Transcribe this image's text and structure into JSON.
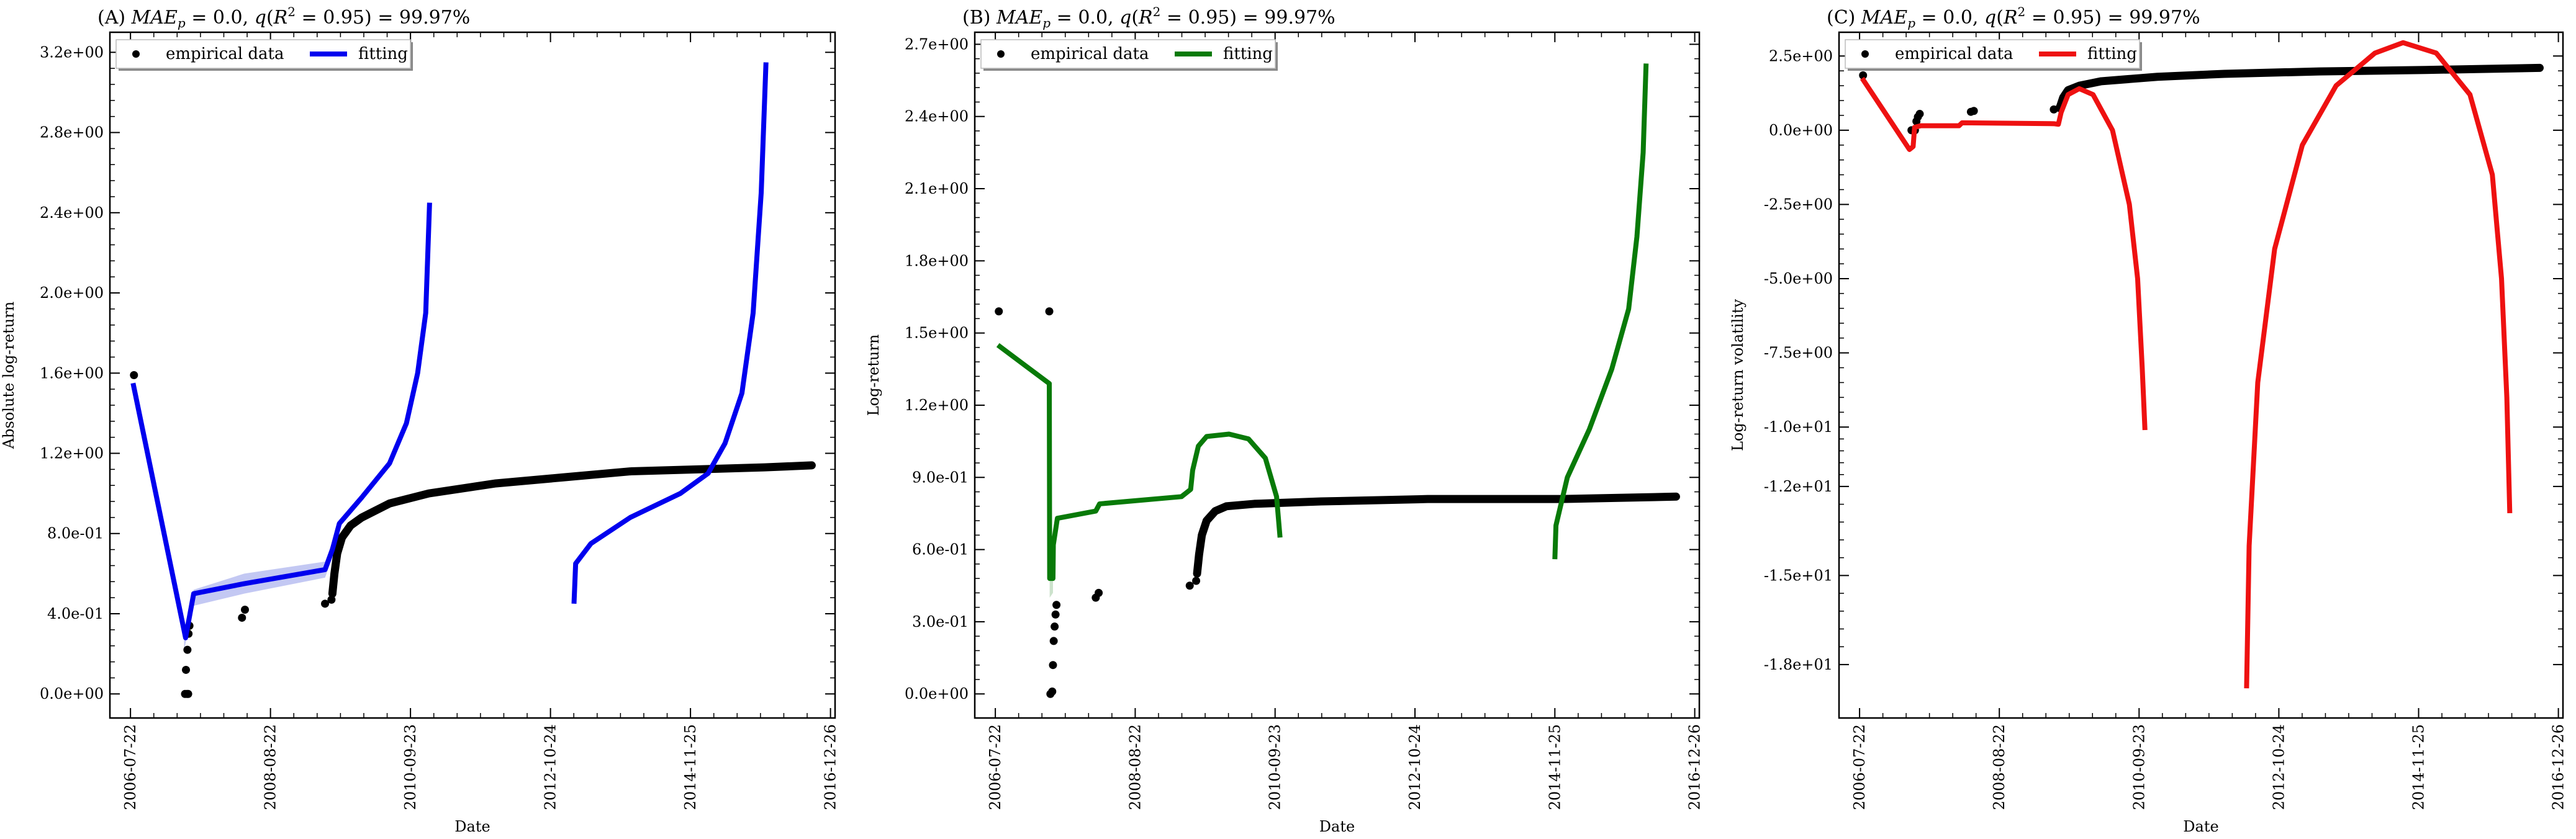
{
  "chart_data": [
    {
      "type": "line",
      "title": "(A) MAE_p = 0.0, q(R^2 = 0.95) = 99.97%",
      "xlabel": "Date",
      "ylabel": "Absolute log-return",
      "xticks": [
        "2006-07-22",
        "2008-08-22",
        "2010-09-23",
        "2012-10-24",
        "2014-11-25",
        "2016-12-26"
      ],
      "xlim": [
        "2006-04-01",
        "2017-01-20"
      ],
      "yticks": [
        "0.0e+00",
        "4.0e-01",
        "8.0e-01",
        "1.2e+00",
        "1.6e+00",
        "2.0e+00",
        "2.4e+00",
        "2.8e+00",
        "3.2e+00"
      ],
      "ylim": [
        -0.12,
        3.3
      ],
      "legend": {
        "position": "top-left",
        "entries": [
          "empirical data",
          "fitting"
        ]
      },
      "fit_color": "#0000ee",
      "band_color": "#aab0ee",
      "series": [
        {
          "name": "empirical data",
          "kind": "points",
          "points": [
            [
              "2006-08-10",
              1.59
            ],
            [
              "2007-05-15",
              0.0
            ],
            [
              "2007-05-25",
              0.0
            ],
            [
              "2007-06-01",
              0.0
            ],
            [
              "2007-05-20",
              0.12
            ],
            [
              "2007-05-28",
              0.22
            ],
            [
              "2007-06-03",
              0.3
            ],
            [
              "2007-06-08",
              0.34
            ],
            [
              "2008-03-20",
              0.38
            ],
            [
              "2008-04-05",
              0.42
            ],
            [
              "2009-06-15",
              0.45
            ],
            [
              "2009-07-20",
              0.47
            ]
          ]
        },
        {
          "name": "empirical data",
          "kind": "curve",
          "points": [
            [
              "2009-07-25",
              0.5
            ],
            [
              "2009-08-05",
              0.6
            ],
            [
              "2009-08-20",
              0.7
            ],
            [
              "2009-09-15",
              0.78
            ],
            [
              "2009-11-01",
              0.84
            ],
            [
              "2010-01-01",
              0.88
            ],
            [
              "2010-06-01",
              0.95
            ],
            [
              "2011-01-01",
              1.0
            ],
            [
              "2012-01-01",
              1.05
            ],
            [
              "2013-01-01",
              1.08
            ],
            [
              "2014-01-01",
              1.11
            ],
            [
              "2015-01-01",
              1.12
            ],
            [
              "2016-01-01",
              1.13
            ],
            [
              "2016-09-15",
              1.14
            ]
          ]
        },
        {
          "name": "fitting",
          "kind": "line",
          "points": [
            [
              "2006-08-05",
              1.55
            ],
            [
              "2007-05-18",
              0.28
            ],
            [
              "2007-07-01",
              0.5
            ],
            [
              "2008-04-01",
              0.55
            ],
            [
              "2009-06-15",
              0.62
            ],
            [
              "2009-07-25",
              0.72
            ],
            [
              "2009-09-01",
              0.85
            ],
            [
              "2010-01-01",
              0.98
            ],
            [
              "2010-06-01",
              1.15
            ],
            [
              "2010-09-01",
              1.35
            ],
            [
              "2010-11-01",
              1.6
            ],
            [
              "2010-12-15",
              1.9
            ],
            [
              "2011-01-05",
              2.45
            ]
          ]
        },
        {
          "name": "fitting",
          "kind": "line",
          "points": [
            [
              "2013-03-01",
              0.45
            ],
            [
              "2013-03-10",
              0.65
            ],
            [
              "2013-06-01",
              0.75
            ],
            [
              "2014-01-01",
              0.88
            ],
            [
              "2014-10-01",
              1.0
            ],
            [
              "2015-03-01",
              1.1
            ],
            [
              "2015-06-01",
              1.25
            ],
            [
              "2015-09-01",
              1.5
            ],
            [
              "2015-11-01",
              1.9
            ],
            [
              "2015-12-15",
              2.5
            ],
            [
              "2016-01-10",
              3.15
            ]
          ]
        }
      ],
      "band": [
        [
          "2007-05-10",
          0.22,
          0.32
        ],
        [
          "2007-07-01",
          0.44,
          0.52
        ],
        [
          "2008-04-01",
          0.5,
          0.6
        ],
        [
          "2009-06-15",
          0.58,
          0.66
        ],
        [
          "2009-07-25",
          0.68,
          0.76
        ]
      ]
    },
    {
      "type": "line",
      "title": "(B) MAE_p = 0.0, q(R^2 = 0.95) = 99.97%",
      "xlabel": "Date",
      "ylabel": "Log-return",
      "xticks": [
        "2006-07-22",
        "2008-08-22",
        "2010-09-23",
        "2012-10-24",
        "2014-11-25",
        "2016-12-26"
      ],
      "xlim": [
        "2006-04-01",
        "2017-01-20"
      ],
      "yticks": [
        "0.0e+00",
        "3.0e-01",
        "6.0e-01",
        "9.0e-01",
        "1.2e+00",
        "1.5e+00",
        "1.8e+00",
        "2.1e+00",
        "2.4e+00",
        "2.7e+00"
      ],
      "ylim": [
        -0.1,
        2.75
      ],
      "legend": {
        "position": "top-left",
        "entries": [
          "empirical data",
          "fitting"
        ]
      },
      "fit_color": "#087a08",
      "band_color": "#b6d6b6",
      "series": [
        {
          "name": "empirical data",
          "kind": "points",
          "points": [
            [
              "2006-08-10",
              1.59
            ],
            [
              "2007-05-12",
              1.59
            ],
            [
              "2007-05-18",
              0.0
            ],
            [
              "2007-05-28",
              0.01
            ],
            [
              "2007-06-01",
              0.12
            ],
            [
              "2007-06-05",
              0.22
            ],
            [
              "2007-06-10",
              0.28
            ],
            [
              "2007-06-15",
              0.33
            ],
            [
              "2007-06-20",
              0.37
            ],
            [
              "2008-01-20",
              0.4
            ],
            [
              "2008-02-05",
              0.42
            ],
            [
              "2009-06-15",
              0.45
            ],
            [
              "2009-07-20",
              0.47
            ]
          ]
        },
        {
          "name": "empirical data",
          "kind": "curve",
          "points": [
            [
              "2009-07-25",
              0.5
            ],
            [
              "2009-08-05",
              0.58
            ],
            [
              "2009-08-20",
              0.66
            ],
            [
              "2009-09-15",
              0.72
            ],
            [
              "2009-11-01",
              0.76
            ],
            [
              "2010-01-01",
              0.78
            ],
            [
              "2010-06-01",
              0.79
            ],
            [
              "2011-06-01",
              0.8
            ],
            [
              "2013-01-01",
              0.81
            ],
            [
              "2015-01-01",
              0.81
            ],
            [
              "2016-09-15",
              0.82
            ]
          ]
        },
        {
          "name": "fitting",
          "kind": "line",
          "points": [
            [
              "2006-08-05",
              1.45
            ],
            [
              "2007-05-12",
              1.29
            ],
            [
              "2007-05-14",
              0.48
            ],
            [
              "2007-06-01",
              0.48
            ],
            [
              "2007-06-03",
              0.62
            ],
            [
              "2007-06-25",
              0.73
            ],
            [
              "2008-01-20",
              0.76
            ],
            [
              "2008-02-10",
              0.79
            ],
            [
              "2009-05-01",
              0.82
            ],
            [
              "2009-06-20",
              0.85
            ],
            [
              "2009-07-01",
              0.93
            ],
            [
              "2009-08-01",
              1.03
            ],
            [
              "2009-09-15",
              1.07
            ],
            [
              "2010-01-15",
              1.08
            ],
            [
              "2010-05-01",
              1.06
            ],
            [
              "2010-08-01",
              0.98
            ],
            [
              "2010-10-01",
              0.82
            ],
            [
              "2010-10-20",
              0.65
            ]
          ]
        },
        {
          "name": "fitting",
          "kind": "line",
          "points": [
            [
              "2014-11-25",
              0.56
            ],
            [
              "2014-12-01",
              0.7
            ],
            [
              "2015-02-01",
              0.9
            ],
            [
              "2015-06-01",
              1.1
            ],
            [
              "2015-10-01",
              1.35
            ],
            [
              "2016-01-01",
              1.6
            ],
            [
              "2016-02-15",
              1.9
            ],
            [
              "2016-03-20",
              2.25
            ],
            [
              "2016-04-05",
              2.62
            ]
          ]
        }
      ],
      "band": [
        [
          "2007-05-14",
          0.4,
          0.56
        ],
        [
          "2007-06-01",
          0.42,
          0.54
        ]
      ]
    },
    {
      "type": "line",
      "title": "(C) MAE_p = 0.0, q(R^2 = 0.95) = 99.97%",
      "xlabel": "Date",
      "ylabel": "Log-return volatility",
      "xticks": [
        "2006-07-22",
        "2008-08-22",
        "2010-09-23",
        "2012-10-24",
        "2014-11-25",
        "2016-12-26"
      ],
      "xlim": [
        "2006-04-01",
        "2017-01-20"
      ],
      "yticks": [
        "-1.8e+01",
        "-1.5e+01",
        "-1.2e+01",
        "-1.0e+01",
        "-7.5e+00",
        "-5.0e+00",
        "-2.5e+00",
        "0.0e+00",
        "2.5e+00"
      ],
      "ylim": [
        -19.8,
        3.3
      ],
      "legend": {
        "position": "top-left",
        "entries": [
          "empirical data",
          "fitting"
        ]
      },
      "fit_color": "#ee1111",
      "band_color": "#f0b0b0",
      "series": [
        {
          "name": "empirical data",
          "kind": "points",
          "points": [
            [
              "2006-08-10",
              1.85
            ],
            [
              "2007-05-01",
              0.0
            ],
            [
              "2007-05-20",
              0.0
            ],
            [
              "2007-05-28",
              0.3
            ],
            [
              "2007-06-05",
              0.45
            ],
            [
              "2007-06-15",
              0.55
            ],
            [
              "2008-03-20",
              0.62
            ],
            [
              "2008-04-05",
              0.65
            ],
            [
              "2009-06-15",
              0.7
            ],
            [
              "2009-07-15",
              0.75
            ]
          ]
        },
        {
          "name": "empirical data",
          "kind": "curve",
          "points": [
            [
              "2009-07-20",
              0.8
            ],
            [
              "2009-08-05",
              1.1
            ],
            [
              "2009-09-01",
              1.35
            ],
            [
              "2009-11-01",
              1.5
            ],
            [
              "2010-03-01",
              1.65
            ],
            [
              "2011-01-01",
              1.8
            ],
            [
              "2012-01-01",
              1.9
            ],
            [
              "2013-06-01",
              1.98
            ],
            [
              "2015-01-01",
              2.03
            ],
            [
              "2016-09-15",
              2.1
            ]
          ]
        },
        {
          "name": "fitting",
          "kind": "line",
          "points": [
            [
              "2006-08-05",
              1.75
            ],
            [
              "2007-04-20",
              -0.65
            ],
            [
              "2007-05-10",
              -0.55
            ],
            [
              "2007-05-18",
              0.1
            ],
            [
              "2007-06-20",
              0.15
            ],
            [
              "2008-01-15",
              0.15
            ],
            [
              "2008-02-01",
              0.25
            ],
            [
              "2009-06-15",
              0.22
            ],
            [
              "2009-07-10",
              0.2
            ],
            [
              "2009-07-25",
              0.6
            ],
            [
              "2009-09-01",
              1.2
            ],
            [
              "2009-11-01",
              1.4
            ],
            [
              "2010-01-15",
              1.2
            ],
            [
              "2010-05-01",
              0.0
            ],
            [
              "2010-08-01",
              -2.5
            ],
            [
              "2010-09-15",
              -5.0
            ],
            [
              "2010-10-10",
              -8.0
            ],
            [
              "2010-10-25",
              -10.1
            ]
          ]
        },
        {
          "name": "fitting",
          "kind": "line",
          "points": [
            [
              "2012-05-01",
              -18.8
            ],
            [
              "2012-05-15",
              -14.0
            ],
            [
              "2012-07-01",
              -8.5
            ],
            [
              "2012-10-01",
              -4.0
            ],
            [
              "2013-03-01",
              -0.5
            ],
            [
              "2013-09-01",
              1.5
            ],
            [
              "2014-04-01",
              2.6
            ],
            [
              "2014-09-01",
              2.95
            ],
            [
              "2015-03-01",
              2.6
            ],
            [
              "2015-09-01",
              1.2
            ],
            [
              "2016-01-01",
              -1.5
            ],
            [
              "2016-02-20",
              -5.0
            ],
            [
              "2016-03-20",
              -9.0
            ],
            [
              "2016-04-05",
              -12.9
            ]
          ]
        }
      ],
      "band": []
    }
  ]
}
